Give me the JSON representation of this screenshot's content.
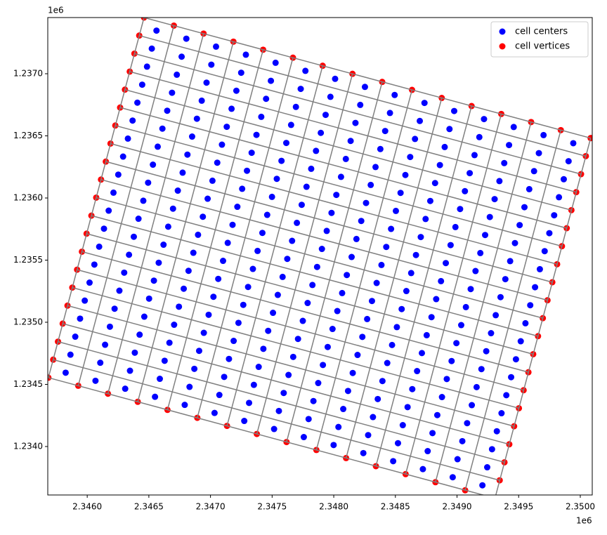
{
  "chart_data": {
    "type": "scatter",
    "xlim": [
      2345680,
      2350097
    ],
    "ylim": [
      1233610,
      1237452
    ],
    "xticks": [
      {
        "value": 2346000,
        "label": "2.3460"
      },
      {
        "value": 2346500,
        "label": "2.3465"
      },
      {
        "value": 2347000,
        "label": "2.3470"
      },
      {
        "value": 2347500,
        "label": "2.3475"
      },
      {
        "value": 2348000,
        "label": "2.3480"
      },
      {
        "value": 2348500,
        "label": "2.3485"
      },
      {
        "value": 2349000,
        "label": "2.3490"
      },
      {
        "value": 2349500,
        "label": "2.3495"
      },
      {
        "value": 2350000,
        "label": "2.3500"
      }
    ],
    "yticks": [
      {
        "value": 1234000,
        "label": "1.2340"
      },
      {
        "value": 1234500,
        "label": "1.2345"
      },
      {
        "value": 1235000,
        "label": "1.2350"
      },
      {
        "value": 1235500,
        "label": "1.2355"
      },
      {
        "value": 1236000,
        "label": "1.2360"
      },
      {
        "value": 1236500,
        "label": "1.2365"
      },
      {
        "value": 1237000,
        "label": "1.2370"
      }
    ],
    "x_offset_text": "1e6",
    "y_offset_text": "1e6",
    "legend": "upper right",
    "series": [
      {
        "name": "cell centers",
        "color": "blue",
        "x": [
          2346562,
          2346804,
          2347045,
          2347287,
          2347528,
          2347770,
          2348011,
          2348253,
          2348494,
          2348736,
          2348977,
          2349219,
          2349460,
          2349702,
          2349943,
          2346524,
          2346766,
          2347007,
          2347249,
          2347490,
          2347732,
          2347973,
          2348215,
          2348456,
          2348698,
          2348939,
          2349181,
          2349422,
          2349664,
          2349905,
          2346485,
          2346727,
          2346968,
          2347210,
          2347451,
          2347693,
          2347934,
          2348176,
          2348417,
          2348659,
          2348900,
          2349142,
          2349383,
          2349625,
          2349866,
          2346446,
          2346688,
          2346929,
          2347171,
          2347412,
          2347654,
          2347895,
          2348137,
          2348378,
          2348620,
          2348861,
          2349103,
          2349344,
          2349586,
          2349827,
          2346407,
          2346649,
          2346890,
          2347132,
          2347373,
          2347615,
          2347856,
          2348098,
          2348339,
          2348581,
          2348822,
          2349064,
          2349305,
          2349547,
          2349788,
          2346368,
          2346610,
          2346851,
          2347093,
          2347334,
          2347576,
          2347817,
          2348059,
          2348300,
          2348542,
          2348783,
          2349025,
          2349266,
          2349508,
          2349749,
          2346330,
          2346572,
          2346813,
          2347055,
          2347296,
          2347538,
          2347779,
          2348021,
          2348262,
          2348504,
          2348745,
          2348987,
          2349228,
          2349470,
          2349711,
          2346291,
          2346533,
          2346774,
          2347016,
          2347257,
          2347499,
          2347740,
          2347982,
          2348223,
          2348465,
          2348706,
          2348948,
          2349189,
          2349431,
          2349672,
          2346252,
          2346494,
          2346735,
          2346977,
          2347218,
          2347460,
          2347701,
          2347943,
          2348184,
          2348426,
          2348667,
          2348909,
          2349150,
          2349392,
          2349633,
          2346213,
          2346455,
          2346696,
          2346938,
          2347179,
          2347421,
          2347662,
          2347904,
          2348145,
          2348387,
          2348628,
          2348870,
          2349111,
          2349353,
          2349594,
          2346174,
          2346416,
          2346657,
          2346899,
          2347140,
          2347382,
          2347623,
          2347865,
          2348106,
          2348348,
          2348589,
          2348831,
          2349072,
          2349314,
          2349555,
          2346136,
          2346378,
          2346619,
          2346861,
          2347102,
          2347344,
          2347585,
          2347827,
          2348068,
          2348310,
          2348551,
          2348793,
          2349034,
          2349276,
          2349517,
          2346097,
          2346339,
          2346580,
          2346822,
          2347063,
          2347305,
          2347546,
          2347788,
          2348029,
          2348271,
          2348512,
          2348754,
          2348995,
          2349237,
          2349478,
          2346058,
          2346300,
          2346541,
          2346783,
          2347024,
          2347266,
          2347507,
          2347749,
          2347990,
          2348232,
          2348473,
          2348715,
          2348956,
          2349198,
          2349439,
          2346019,
          2346261,
          2346502,
          2346744,
          2346985,
          2347227,
          2347468,
          2347710,
          2347951,
          2348193,
          2348434,
          2348676,
          2348917,
          2349159,
          2349400,
          2345980,
          2346222,
          2346463,
          2346705,
          2346946,
          2347188,
          2347429,
          2347671,
          2347912,
          2348154,
          2348395,
          2348637,
          2348878,
          2349120,
          2349361,
          2345942,
          2346184,
          2346425,
          2346667,
          2346908,
          2347150,
          2347391,
          2347633,
          2347874,
          2348116,
          2348357,
          2348599,
          2348840,
          2349082,
          2349323,
          2345903,
          2346145,
          2346386,
          2346628,
          2346869,
          2347111,
          2347352,
          2347594,
          2347835,
          2348077,
          2348318,
          2348560,
          2348801,
          2349043,
          2349284,
          2345864,
          2346106,
          2346347,
          2346589,
          2346830,
          2347072,
          2347313,
          2347555,
          2347796,
          2348038,
          2348279,
          2348521,
          2348762,
          2349004,
          2349245,
          2345825,
          2346067,
          2346308,
          2346550,
          2346791,
          2347033,
          2347274,
          2347516,
          2347757,
          2347999,
          2348240,
          2348482,
          2348723,
          2348965,
          2349206
        ],
        "y": [
          1237347,
          1237282,
          1237218,
          1237153,
          1237088,
          1237023,
          1236959,
          1236894,
          1236829,
          1236765,
          1236700,
          1236635,
          1236571,
          1236506,
          1236441,
          1237202,
          1237137,
          1237073,
          1237008,
          1236943,
          1236878,
          1236814,
          1236749,
          1236684,
          1236620,
          1236555,
          1236490,
          1236426,
          1236361,
          1236296,
          1237057,
          1236992,
          1236928,
          1236863,
          1236798,
          1236733,
          1236669,
          1236604,
          1236539,
          1236475,
          1236410,
          1236345,
          1236281,
          1236216,
          1236151,
          1236912,
          1236847,
          1236783,
          1236718,
          1236653,
          1236588,
          1236524,
          1236459,
          1236394,
          1236330,
          1236265,
          1236200,
          1236136,
          1236071,
          1236006,
          1236767,
          1236702,
          1236638,
          1236573,
          1236508,
          1236443,
          1236379,
          1236314,
          1236249,
          1236185,
          1236120,
          1236055,
          1235991,
          1235926,
          1235861,
          1236623,
          1236558,
          1236494,
          1236429,
          1236364,
          1236299,
          1236235,
          1236170,
          1236105,
          1236041,
          1235976,
          1235911,
          1235847,
          1235782,
          1235717,
          1236478,
          1236413,
          1236349,
          1236284,
          1236219,
          1236154,
          1236090,
          1236025,
          1235960,
          1235896,
          1235831,
          1235766,
          1235702,
          1235637,
          1235572,
          1236333,
          1236268,
          1236204,
          1236139,
          1236074,
          1236009,
          1235945,
          1235880,
          1235815,
          1235751,
          1235686,
          1235621,
          1235557,
          1235492,
          1235427,
          1236188,
          1236123,
          1236059,
          1235994,
          1235929,
          1235864,
          1235800,
          1235735,
          1235670,
          1235606,
          1235541,
          1235476,
          1235412,
          1235347,
          1235282,
          1236043,
          1235978,
          1235914,
          1235849,
          1235784,
          1235719,
          1235655,
          1235590,
          1235525,
          1235461,
          1235396,
          1235331,
          1235267,
          1235202,
          1235137,
          1235898,
          1235833,
          1235769,
          1235704,
          1235639,
          1235574,
          1235510,
          1235445,
          1235380,
          1235316,
          1235251,
          1235186,
          1235122,
          1235057,
          1234992,
          1235753,
          1235688,
          1235624,
          1235559,
          1235494,
          1235429,
          1235365,
          1235300,
          1235235,
          1235171,
          1235106,
          1235041,
          1234977,
          1234912,
          1234847,
          1235608,
          1235543,
          1235479,
          1235414,
          1235349,
          1235284,
          1235220,
          1235155,
          1235090,
          1235026,
          1234961,
          1234896,
          1234832,
          1234767,
          1234702,
          1235464,
          1235399,
          1235335,
          1235270,
          1235205,
          1235140,
          1235076,
          1235011,
          1234946,
          1234882,
          1234817,
          1234752,
          1234688,
          1234623,
          1234558,
          1235319,
          1235254,
          1235190,
          1235125,
          1235060,
          1234995,
          1234931,
          1234866,
          1234801,
          1234737,
          1234672,
          1234607,
          1234543,
          1234478,
          1234413,
          1235174,
          1235109,
          1235045,
          1234980,
          1234915,
          1234850,
          1234786,
          1234721,
          1234656,
          1234592,
          1234527,
          1234462,
          1234398,
          1234333,
          1234268,
          1235029,
          1234964,
          1234900,
          1234835,
          1234770,
          1234705,
          1234641,
          1234576,
          1234511,
          1234447,
          1234382,
          1234317,
          1234253,
          1234188,
          1234123,
          1234884,
          1234819,
          1234755,
          1234690,
          1234625,
          1234560,
          1234496,
          1234431,
          1234366,
          1234302,
          1234237,
          1234172,
          1234108,
          1234043,
          1233978,
          1234739,
          1234674,
          1234610,
          1234545,
          1234480,
          1234415,
          1234351,
          1234286,
          1234221,
          1234157,
          1234092,
          1234027,
          1233963,
          1233898,
          1233833,
          1234594,
          1234529,
          1234465,
          1234400,
          1234335,
          1234270,
          1234206,
          1234141,
          1234076,
          1234012,
          1233947,
          1233882,
          1233818,
          1233753,
          1233688
        ]
      },
      {
        "name": "cell vertices",
        "color": "red",
        "x": [
          2346461,
          2346703,
          2346944,
          2347186,
          2347427,
          2347669,
          2347910,
          2348152,
          2348393,
          2348635,
          2348876,
          2349118,
          2349359,
          2349601,
          2349842,
          2350084,
          2350045,
          2350006,
          2349967,
          2349928,
          2349890,
          2349851,
          2349812,
          2349773,
          2349734,
          2349696,
          2349657,
          2349618,
          2349579,
          2349540,
          2349502,
          2349463,
          2349424,
          2349385,
          2349346,
          2349308,
          2349066,
          2348825,
          2348583,
          2348342,
          2348100,
          2347859,
          2347617,
          2347376,
          2347134,
          2346893,
          2346651,
          2346410,
          2346168,
          2345927,
          2345685,
          2345724,
          2345763,
          2345801,
          2345840,
          2345879,
          2345918,
          2345957,
          2345995,
          2346034,
          2346073,
          2346112,
          2346151,
          2346189,
          2346228,
          2346267,
          2346306,
          2346345,
          2346383,
          2346422
        ],
        "y": [
          1237452,
          1237387,
          1237323,
          1237258,
          1237193,
          1237129,
          1237064,
          1236999,
          1236934,
          1236870,
          1236805,
          1236740,
          1236676,
          1236611,
          1236546,
          1236482,
          1236337,
          1236192,
          1236047,
          1235902,
          1235757,
          1235612,
          1235467,
          1235322,
          1235177,
          1235033,
          1234888,
          1234743,
          1234598,
          1234453,
          1234308,
          1234163,
          1234018,
          1233873,
          1233728,
          1233584,
          1233648,
          1233713,
          1233778,
          1233842,
          1233907,
          1233972,
          1234036,
          1234101,
          1234166,
          1234231,
          1234295,
          1234360,
          1234425,
          1234489,
          1234554,
          1234699,
          1234844,
          1234989,
          1235134,
          1235279,
          1235423,
          1235568,
          1235713,
          1235858,
          1236003,
          1236148,
          1236293,
          1236438,
          1236583,
          1236728,
          1236872,
          1237017,
          1237162,
          1237307
        ]
      }
    ]
  }
}
